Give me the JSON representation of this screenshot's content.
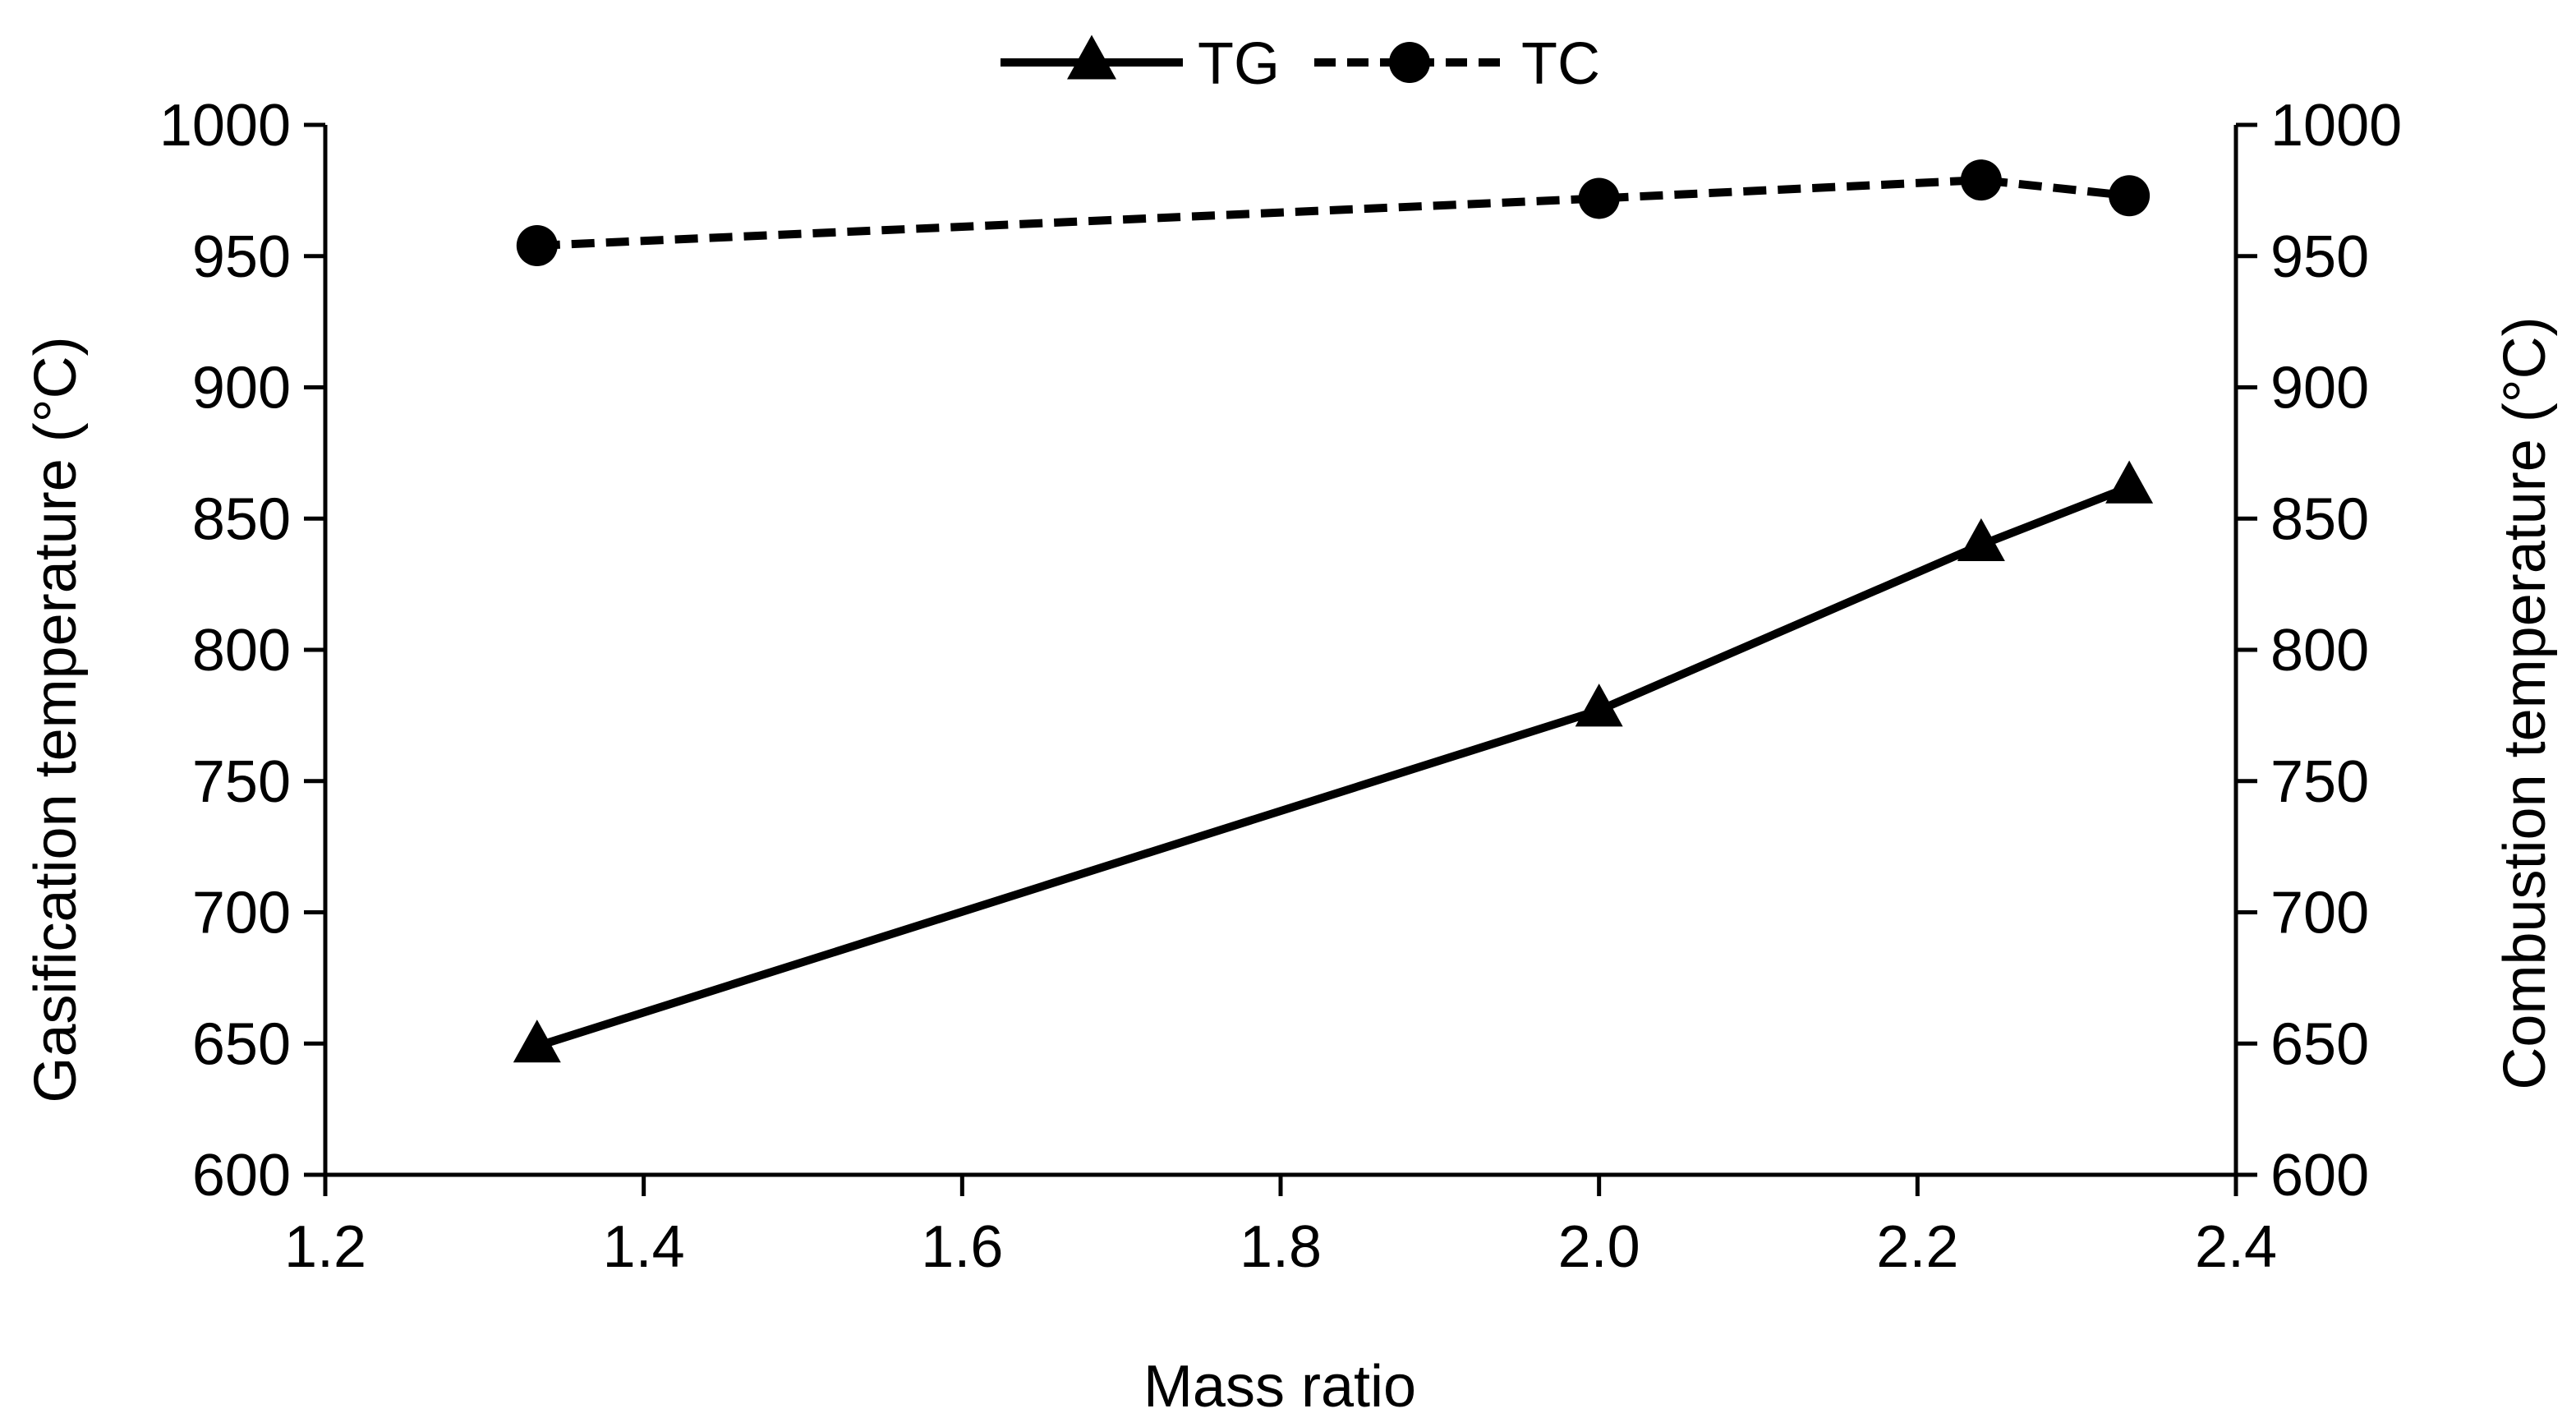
{
  "chart_data": {
    "type": "line",
    "title": "",
    "xlabel": "Mass ratio",
    "ylabel": "Gasification temperature (°C)",
    "y2label": "Combustion temperature (°C)",
    "xlim": [
      1.2,
      2.4
    ],
    "ylim": [
      600,
      1000
    ],
    "y2lim": [
      600,
      1000
    ],
    "xticks": [
      "1.2",
      "1.4",
      "1.6",
      "1.8",
      "2.0",
      "2.2",
      "2.4"
    ],
    "yticks": [
      "600",
      "650",
      "700",
      "750",
      "800",
      "850",
      "900",
      "950",
      "1000"
    ],
    "y2ticks": [
      "600",
      "650",
      "700",
      "750",
      "800",
      "850",
      "900",
      "950",
      "1000"
    ],
    "grid": false,
    "legend_position": "top-center",
    "series": [
      {
        "name": "TG",
        "axis": "left",
        "line_style": "solid",
        "marker": "triangle",
        "color": "#000000",
        "x": [
          1.333,
          2.0,
          2.24,
          2.333
        ],
        "values": [
          649,
          777,
          840,
          862
        ]
      },
      {
        "name": "TC",
        "axis": "right",
        "line_style": "dashed",
        "marker": "circle",
        "color": "#000000",
        "x": [
          1.333,
          2.0,
          2.24,
          2.333
        ],
        "values": [
          954,
          972,
          979,
          973
        ]
      }
    ]
  }
}
